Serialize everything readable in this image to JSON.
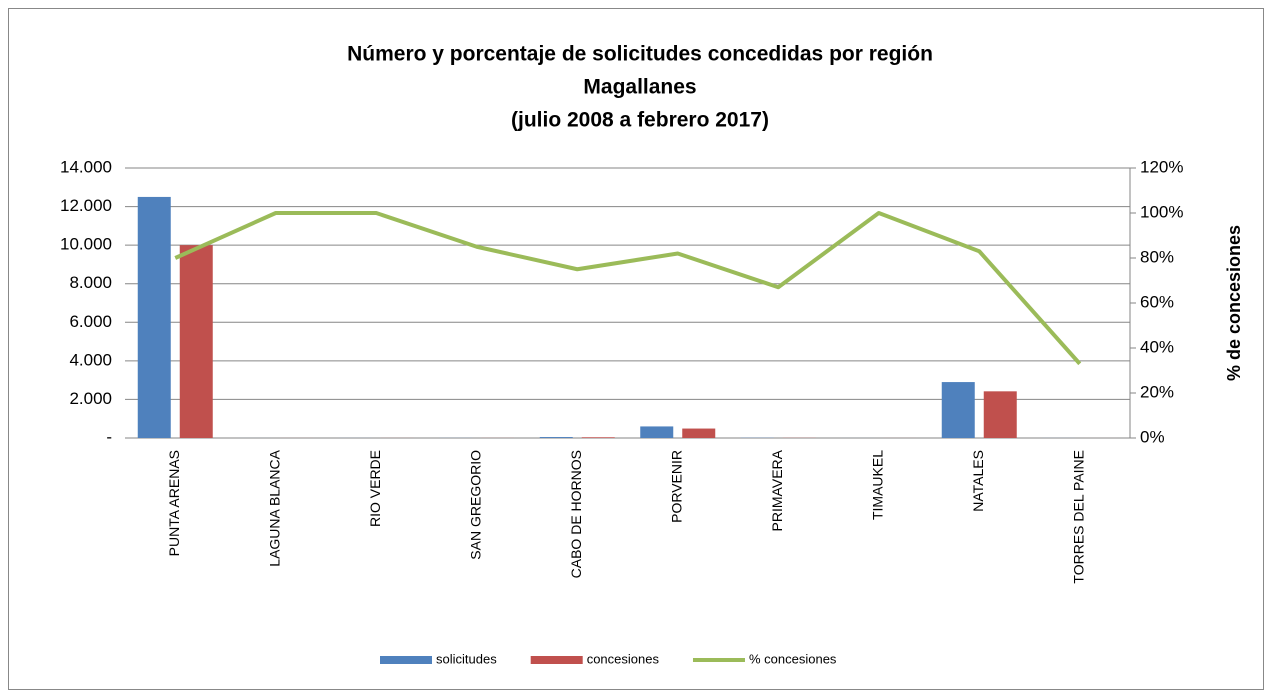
{
  "chart_data": {
    "type": "bar_line",
    "title": [
      "Número y porcentaje de solicitudes concedidas por región",
      "Magallanes",
      "(julio 2008 a febrero 2017)"
    ],
    "y2_label": "% de concesiones",
    "categories": [
      "PUNTA ARENAS",
      "LAGUNA BLANCA",
      "RIO VERDE",
      "SAN GREGORIO",
      "CABO DE HORNOS",
      "PORVENIR",
      "PRIMAVERA",
      "TIMAUKEL",
      "NATALES",
      "TORRES DEL PAINE"
    ],
    "series": [
      {
        "name": "solicitudes",
        "color": "#4f81bd",
        "type": "bar",
        "values": [
          12500,
          2,
          3,
          5,
          50,
          600,
          12,
          2,
          2900,
          3
        ]
      },
      {
        "name": "concesiones",
        "color": "#c0504d",
        "type": "bar",
        "values": [
          10000,
          2,
          3,
          4,
          38,
          490,
          8,
          2,
          2420,
          1
        ]
      },
      {
        "name": "% concesiones",
        "color": "#9bbb59",
        "type": "line",
        "axis": "y2",
        "values": [
          80,
          100,
          100,
          85,
          75,
          82,
          67,
          100,
          83,
          33
        ]
      }
    ],
    "ylim": [
      0,
      14000
    ],
    "yticks": [
      {
        "value": 0,
        "label": "-"
      },
      {
        "value": 2000,
        "label": "2.000"
      },
      {
        "value": 4000,
        "label": "4.000"
      },
      {
        "value": 6000,
        "label": "6.000"
      },
      {
        "value": 8000,
        "label": "8.000"
      },
      {
        "value": 10000,
        "label": "10.000"
      },
      {
        "value": 12000,
        "label": "12.000"
      },
      {
        "value": 14000,
        "label": "14.000"
      }
    ],
    "y2lim": [
      0,
      120
    ],
    "y2ticks": [
      {
        "value": 0,
        "label": "0%"
      },
      {
        "value": 20,
        "label": "20%"
      },
      {
        "value": 40,
        "label": "40%"
      },
      {
        "value": 60,
        "label": "60%"
      },
      {
        "value": 80,
        "label": "80%"
      },
      {
        "value": 100,
        "label": "100%"
      },
      {
        "value": 120,
        "label": "120%"
      }
    ],
    "grid": true,
    "legend": "bottom"
  }
}
